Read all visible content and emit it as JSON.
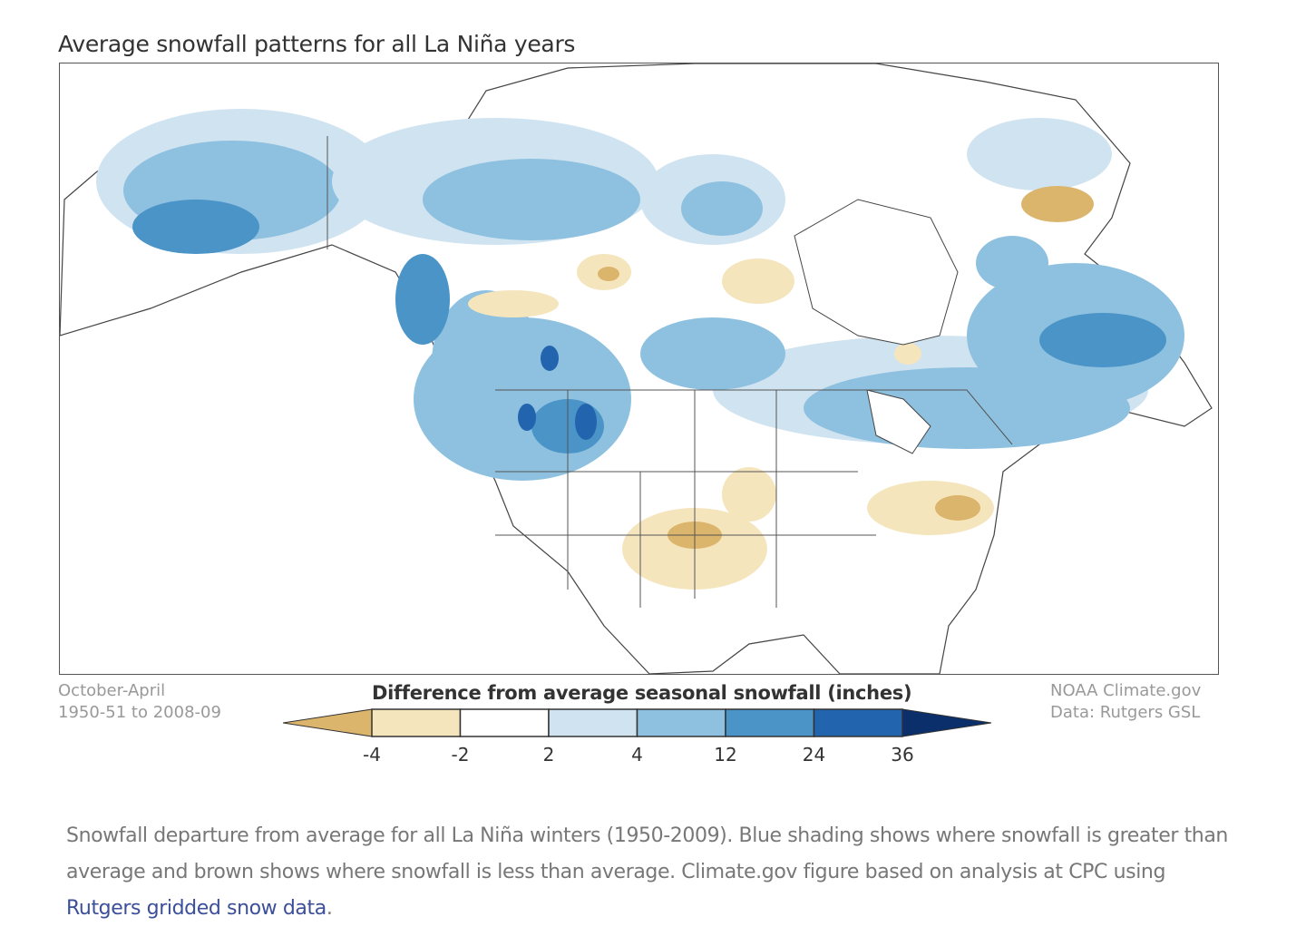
{
  "title": "Average snowfall patterns for all La Niña years",
  "period": {
    "months": "October-April",
    "years": "1950-51 to 2008-09"
  },
  "credit": {
    "line1": "NOAA Climate.gov",
    "line2": "Data: Rutgers GSL"
  },
  "legend": {
    "title": "Difference from average seasonal snowfall (inches)",
    "ticks": [
      "-4",
      "-2",
      "2",
      "4",
      "12",
      "24",
      "36"
    ],
    "colors": [
      "#dcb56c",
      "#f5e5bd",
      "#ffffff",
      "#d0e3f1",
      "#8ec1e0",
      "#4a94c8",
      "#2265ae",
      "#0b2f6b"
    ]
  },
  "caption": {
    "text": "Snowfall departure from average for all La Niña winters (1950-2009). Blue shading shows where snowfall is greater than average and brown shows where snowfall is less than average. Climate.gov figure based on analysis at CPC using ",
    "link": "Rutgers gridded snow data",
    "end": "."
  }
}
